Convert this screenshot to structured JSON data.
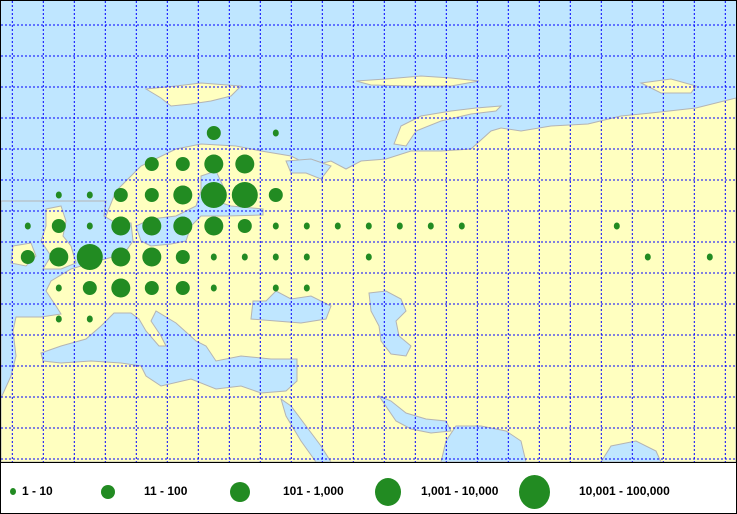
{
  "map": {
    "colors": {
      "ocean": "#bfe6ff",
      "land": "#ffffc0",
      "border": "#b4b4b4",
      "graticule": "#0000ff",
      "symbol": "#228b22"
    }
  },
  "legend": {
    "items": [
      {
        "label": "1 - 10",
        "symbol": "smallest-circle"
      },
      {
        "label": "11 - 100",
        "symbol": "small-circle"
      },
      {
        "label": "101 - 1,000",
        "symbol": "medium-circle"
      },
      {
        "label": "1,001 - 10,000",
        "symbol": "large-circle"
      },
      {
        "label": "10,001 - 100,000",
        "symbol": "largest-circle"
      }
    ]
  }
}
